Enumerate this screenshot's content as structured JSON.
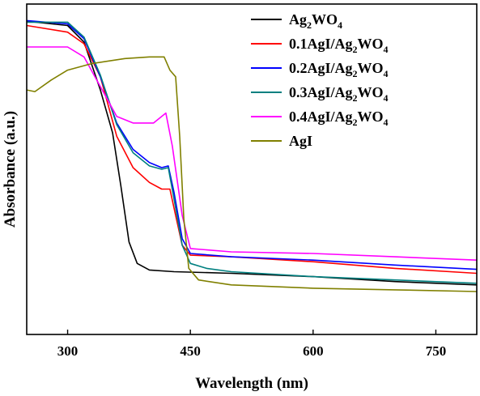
{
  "chart_data": {
    "type": "line",
    "xlabel": "Wavelength (nm)",
    "ylabel": "Absorbance (a.u.)",
    "xlim": [
      250,
      800
    ],
    "ylim": [
      0,
      1
    ],
    "xticks": [
      300,
      450,
      600,
      750
    ],
    "yticks": "none",
    "grid": false,
    "legend_position": "top-right",
    "series": [
      {
        "name": "Ag2WO4",
        "legend": {
          "pre": "Ag",
          "sub1": "2",
          "mid": "WO",
          "sub2": "4",
          "post": ""
        },
        "color": "#000000",
        "points": [
          [
            250,
            0.948
          ],
          [
            300,
            0.935
          ],
          [
            320,
            0.885
          ],
          [
            340,
            0.74
          ],
          [
            355,
            0.61
          ],
          [
            365,
            0.45
          ],
          [
            375,
            0.28
          ],
          [
            385,
            0.215
          ],
          [
            400,
            0.195
          ],
          [
            430,
            0.19
          ],
          [
            500,
            0.185
          ],
          [
            600,
            0.175
          ],
          [
            700,
            0.16
          ],
          [
            800,
            0.15
          ]
        ]
      },
      {
        "name": "0.1AgI/Ag2WO4",
        "legend": {
          "pre": "0.1AgI/Ag",
          "sub1": "2",
          "mid": "WO",
          "sub2": "4",
          "post": ""
        },
        "color": "#ff0000",
        "points": [
          [
            250,
            0.935
          ],
          [
            300,
            0.915
          ],
          [
            320,
            0.88
          ],
          [
            340,
            0.78
          ],
          [
            360,
            0.6
          ],
          [
            380,
            0.505
          ],
          [
            400,
            0.46
          ],
          [
            415,
            0.44
          ],
          [
            425,
            0.44
          ],
          [
            432,
            0.36
          ],
          [
            440,
            0.27
          ],
          [
            450,
            0.24
          ],
          [
            500,
            0.235
          ],
          [
            600,
            0.22
          ],
          [
            700,
            0.2
          ],
          [
            800,
            0.185
          ]
        ]
      },
      {
        "name": "0.2AgI/Ag2WO4",
        "legend": {
          "pre": "0.2AgI/Ag",
          "sub1": "2",
          "mid": "WO",
          "sub2": "4",
          "post": ""
        },
        "color": "#0000ff",
        "points": [
          [
            250,
            0.95
          ],
          [
            300,
            0.94
          ],
          [
            320,
            0.895
          ],
          [
            340,
            0.78
          ],
          [
            360,
            0.64
          ],
          [
            380,
            0.56
          ],
          [
            400,
            0.52
          ],
          [
            415,
            0.505
          ],
          [
            423,
            0.51
          ],
          [
            430,
            0.43
          ],
          [
            440,
            0.29
          ],
          [
            450,
            0.245
          ],
          [
            500,
            0.235
          ],
          [
            600,
            0.225
          ],
          [
            700,
            0.21
          ],
          [
            800,
            0.197
          ]
        ]
      },
      {
        "name": "0.3AgI/Ag2WO4",
        "legend": {
          "pre": "0.3AgI/Ag",
          "sub1": "2",
          "mid": "WO",
          "sub2": "4",
          "post": ""
        },
        "color": "#008080",
        "points": [
          [
            250,
            0.945
          ],
          [
            300,
            0.945
          ],
          [
            320,
            0.9
          ],
          [
            340,
            0.785
          ],
          [
            360,
            0.635
          ],
          [
            380,
            0.55
          ],
          [
            400,
            0.51
          ],
          [
            415,
            0.5
          ],
          [
            423,
            0.505
          ],
          [
            430,
            0.41
          ],
          [
            440,
            0.27
          ],
          [
            450,
            0.215
          ],
          [
            470,
            0.2
          ],
          [
            500,
            0.19
          ],
          [
            600,
            0.175
          ],
          [
            700,
            0.165
          ],
          [
            800,
            0.155
          ]
        ]
      },
      {
        "name": "0.4AgI/Ag2WO4",
        "legend": {
          "pre": "0.4AgI/Ag",
          "sub1": "2",
          "mid": "WO",
          "sub2": "4",
          "post": ""
        },
        "color": "#ff00ff",
        "points": [
          [
            250,
            0.87
          ],
          [
            300,
            0.87
          ],
          [
            320,
            0.84
          ],
          [
            340,
            0.75
          ],
          [
            360,
            0.66
          ],
          [
            380,
            0.64
          ],
          [
            405,
            0.64
          ],
          [
            420,
            0.67
          ],
          [
            428,
            0.57
          ],
          [
            440,
            0.36
          ],
          [
            450,
            0.26
          ],
          [
            500,
            0.25
          ],
          [
            600,
            0.245
          ],
          [
            700,
            0.235
          ],
          [
            800,
            0.225
          ]
        ]
      },
      {
        "name": "AgI",
        "legend": {
          "pre": "AgI",
          "sub1": "",
          "mid": "",
          "sub2": "",
          "post": ""
        },
        "color": "#808000",
        "points": [
          [
            250,
            0.74
          ],
          [
            260,
            0.735
          ],
          [
            280,
            0.77
          ],
          [
            300,
            0.8
          ],
          [
            330,
            0.82
          ],
          [
            370,
            0.835
          ],
          [
            400,
            0.84
          ],
          [
            418,
            0.84
          ],
          [
            425,
            0.8
          ],
          [
            432,
            0.78
          ],
          [
            437,
            0.6
          ],
          [
            442,
            0.35
          ],
          [
            448,
            0.2
          ],
          [
            460,
            0.165
          ],
          [
            500,
            0.15
          ],
          [
            600,
            0.14
          ],
          [
            700,
            0.135
          ],
          [
            800,
            0.13
          ]
        ]
      }
    ]
  }
}
